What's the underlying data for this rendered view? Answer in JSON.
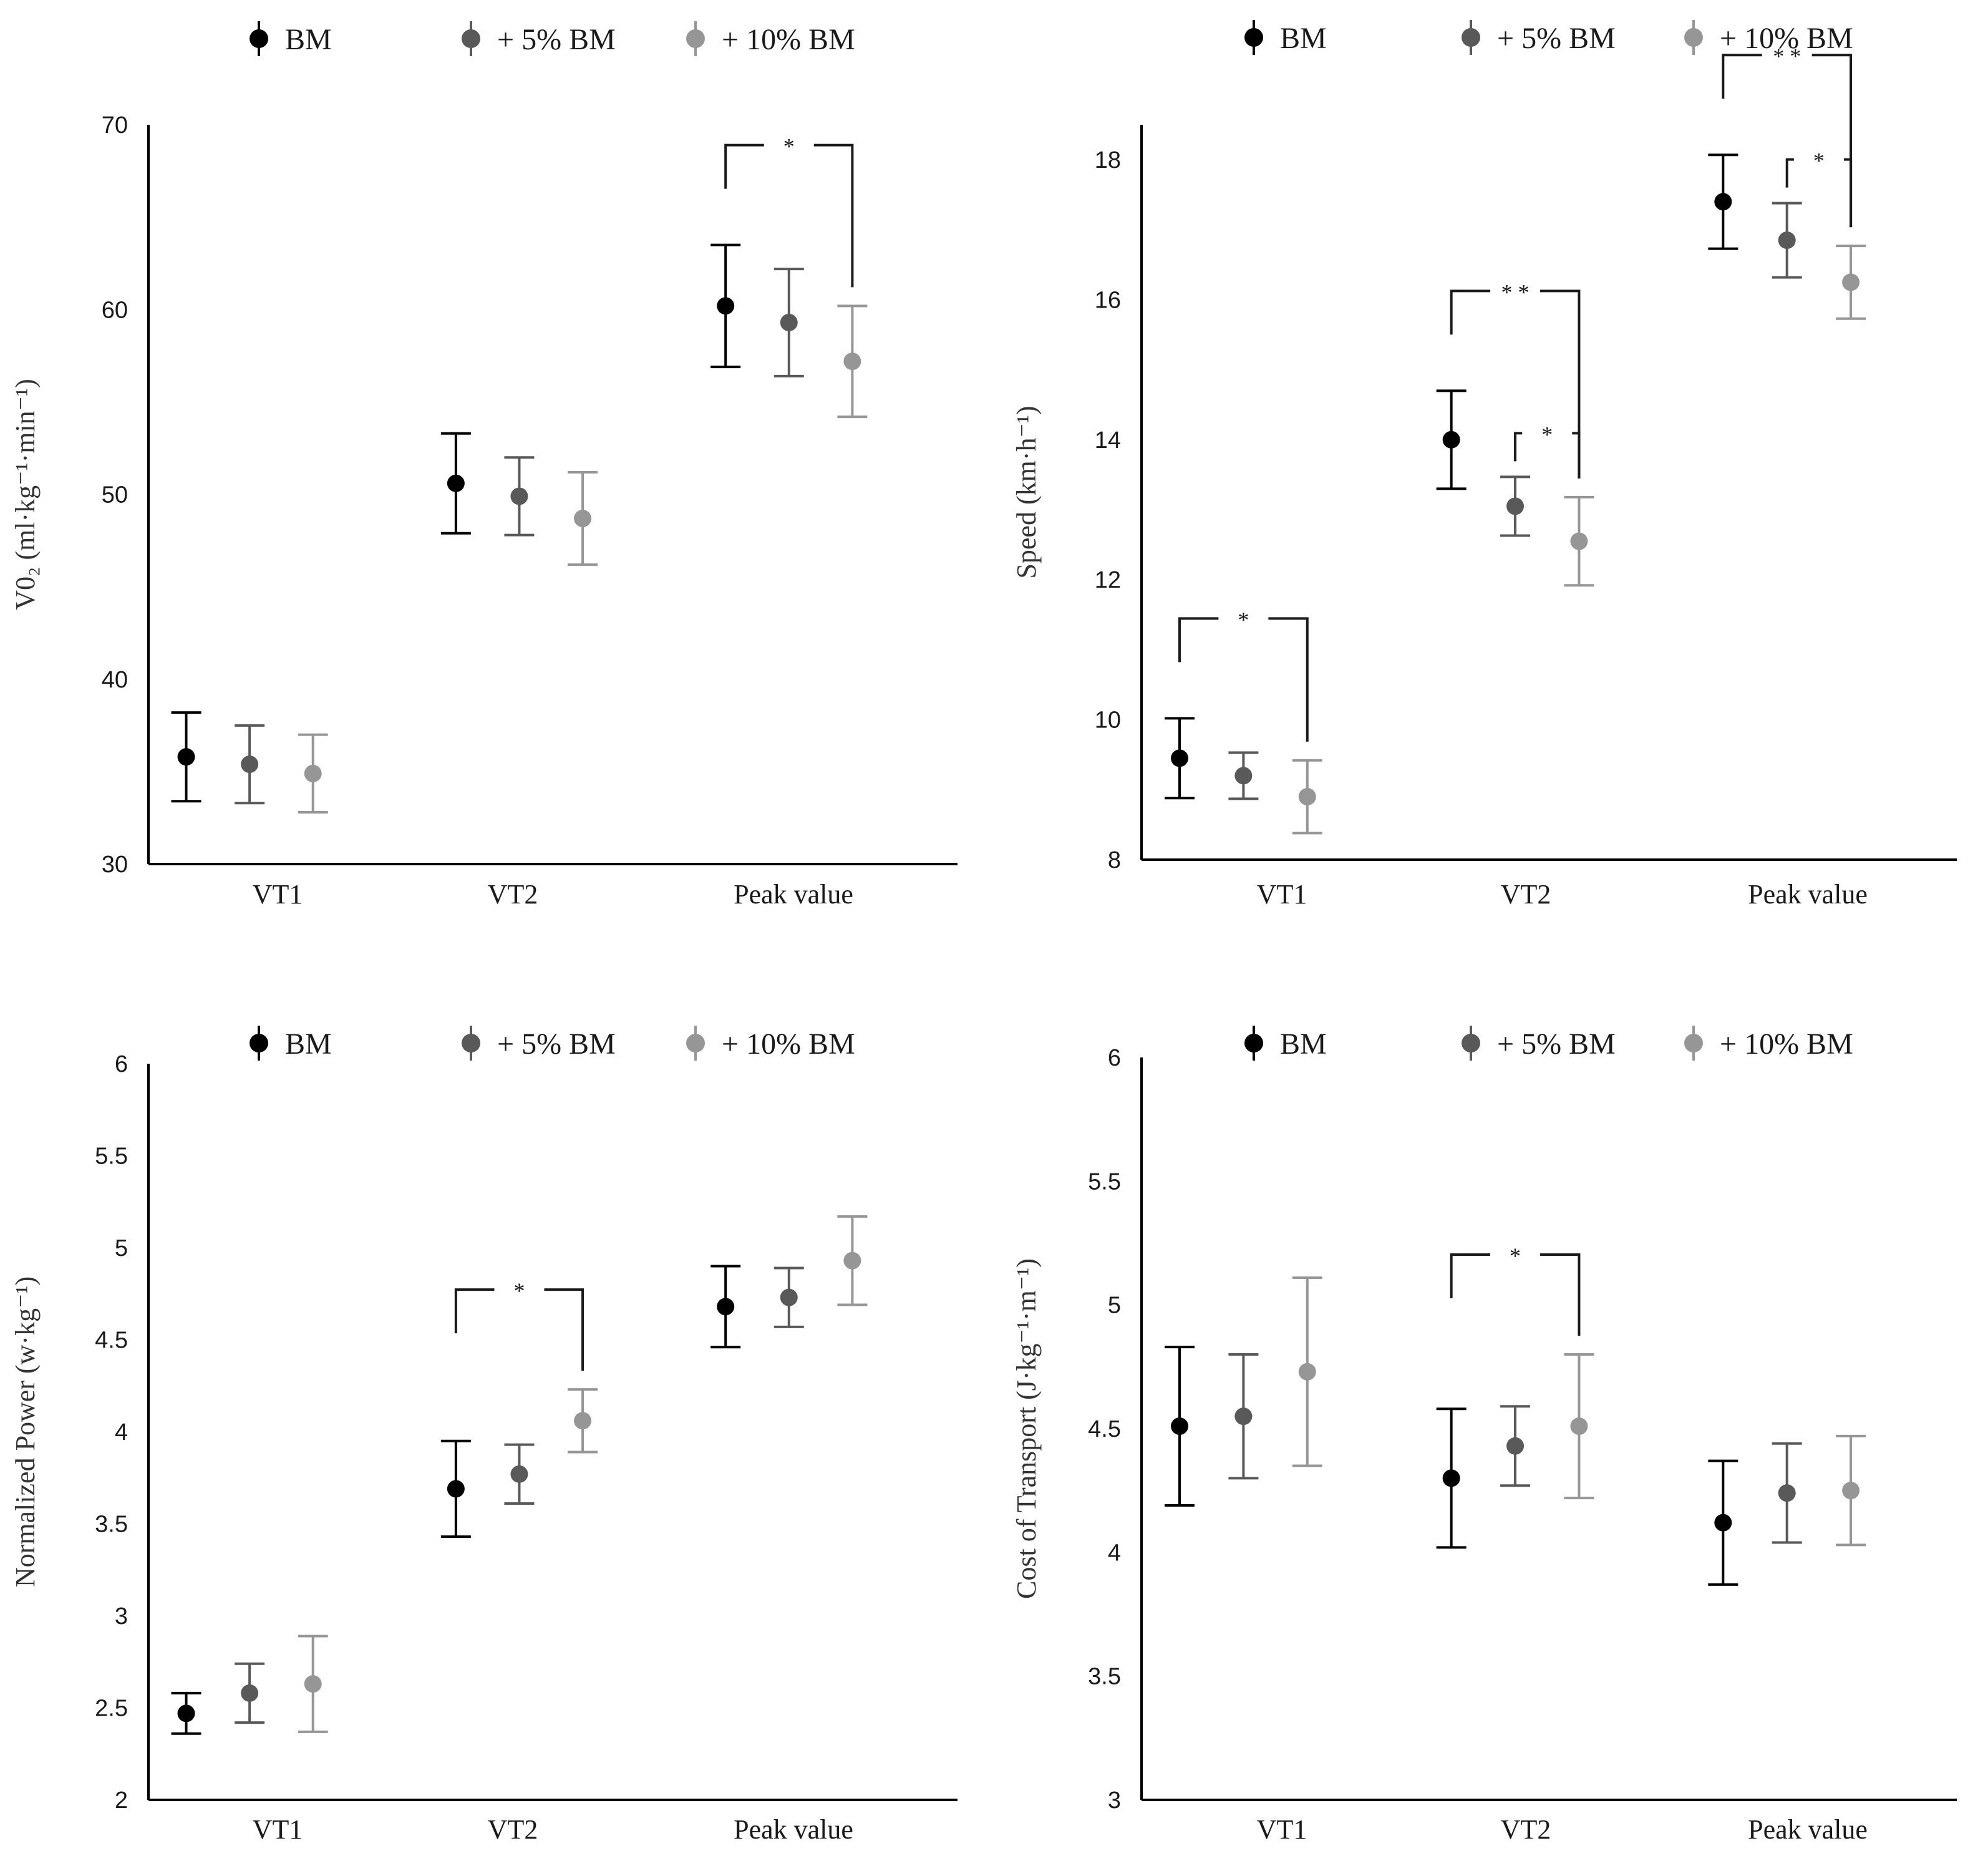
{
  "colors": {
    "bm": "#000000",
    "bm5": "#595959",
    "bm10": "#969696",
    "axis": "#000000",
    "bracket": "#1a1a1a"
  },
  "legend": [
    "BM",
    "+ 5% BM",
    "+ 10% BM"
  ],
  "chart_data": [
    {
      "type": "scatter",
      "title": "",
      "ylabel": "V0₂ (ml·kg⁻¹·min⁻¹)",
      "xlabel": "",
      "categories": [
        "VT1",
        "VT2",
        "Peak value"
      ],
      "ylim": [
        30,
        70
      ],
      "yticks": [
        "30",
        "40",
        "50",
        "60",
        "70"
      ],
      "series": [
        {
          "name": "BM",
          "values": [
            35.8,
            50.6,
            60.2
          ],
          "errors": [
            2.4,
            2.7,
            3.3
          ]
        },
        {
          "name": "+ 5% BM",
          "values": [
            35.4,
            49.9,
            59.3
          ],
          "errors": [
            2.1,
            2.1,
            2.9
          ]
        },
        {
          "name": "+ 10% BM",
          "values": [
            34.9,
            48.7,
            57.2
          ],
          "errors": [
            2.1,
            2.5,
            3.0
          ]
        }
      ],
      "significance": [
        {
          "category": "Peak value",
          "from": "BM",
          "to": "+ 10% BM",
          "label": "*"
        }
      ]
    },
    {
      "type": "scatter",
      "title": "",
      "ylabel": "Speed (km·h⁻¹)",
      "xlabel": "",
      "categories": [
        "VT1",
        "VT2",
        "Peak value"
      ],
      "ylim": [
        8,
        18.5
      ],
      "yticks": [
        "8",
        "10",
        "12",
        "14",
        "16",
        "18"
      ],
      "series": [
        {
          "name": "BM",
          "values": [
            9.45,
            14.0,
            17.4
          ],
          "errors": [
            0.57,
            0.7,
            0.67
          ]
        },
        {
          "name": "+ 5% BM",
          "values": [
            9.2,
            13.05,
            16.85
          ],
          "errors": [
            0.33,
            0.42,
            0.53
          ]
        },
        {
          "name": "+ 10% BM",
          "values": [
            8.9,
            12.55,
            16.25
          ],
          "errors": [
            0.52,
            0.63,
            0.52
          ]
        }
      ],
      "significance": [
        {
          "category": "VT1",
          "from": "BM",
          "to": "+ 10% BM",
          "label": "*"
        },
        {
          "category": "VT2",
          "from": "BM",
          "to": "+ 10% BM",
          "label": "* *"
        },
        {
          "category": "VT2",
          "from": "+ 5% BM",
          "to": "+ 10% BM",
          "label": "*"
        },
        {
          "category": "Peak value",
          "from": "BM",
          "to": "+ 10% BM",
          "label": "* *"
        },
        {
          "category": "Peak value",
          "from": "+ 5% BM",
          "to": "+ 10% BM",
          "label": "*"
        }
      ]
    },
    {
      "type": "scatter",
      "title": "",
      "ylabel": "Normalized Power (w·kg⁻¹)",
      "xlabel": "",
      "categories": [
        "VT1",
        "VT2",
        "Peak value"
      ],
      "ylim": [
        2,
        6
      ],
      "yticks": [
        "2",
        "2.5",
        "3",
        "3.5",
        "4",
        "4.5",
        "5",
        "5.5",
        "6"
      ],
      "series": [
        {
          "name": "BM",
          "values": [
            2.47,
            3.69,
            4.68
          ],
          "errors": [
            0.11,
            0.26,
            0.22
          ]
        },
        {
          "name": "+ 5% BM",
          "values": [
            2.58,
            3.77,
            4.73
          ],
          "errors": [
            0.16,
            0.16,
            0.16
          ]
        },
        {
          "name": "+ 10% BM",
          "values": [
            2.63,
            4.06,
            4.93
          ],
          "errors": [
            0.26,
            0.17,
            0.24
          ]
        }
      ],
      "significance": [
        {
          "category": "VT2",
          "from": "BM",
          "to": "+ 10% BM",
          "label": "*"
        }
      ]
    },
    {
      "type": "scatter",
      "title": "",
      "ylabel": "Cost of Transport (J·kg⁻¹·m⁻¹)",
      "xlabel": "",
      "categories": [
        "VT1",
        "VT2",
        "Peak value"
      ],
      "ylim": [
        3,
        6
      ],
      "yticks": [
        "3",
        "3.5",
        "4",
        "4.5",
        "5",
        "5.5",
        "6"
      ],
      "series": [
        {
          "name": "BM",
          "values": [
            4.51,
            4.3,
            4.12
          ],
          "errors": [
            0.32,
            0.28,
            0.25
          ]
        },
        {
          "name": "+ 5% BM",
          "values": [
            4.55,
            4.43,
            4.24
          ],
          "errors": [
            0.25,
            0.16,
            0.2
          ]
        },
        {
          "name": "+ 10% BM",
          "values": [
            4.73,
            4.51,
            4.25
          ],
          "errors": [
            0.38,
            0.29,
            0.22
          ]
        }
      ],
      "significance": [
        {
          "category": "VT2",
          "from": "BM",
          "to": "+ 10% BM",
          "label": "*"
        }
      ]
    }
  ]
}
